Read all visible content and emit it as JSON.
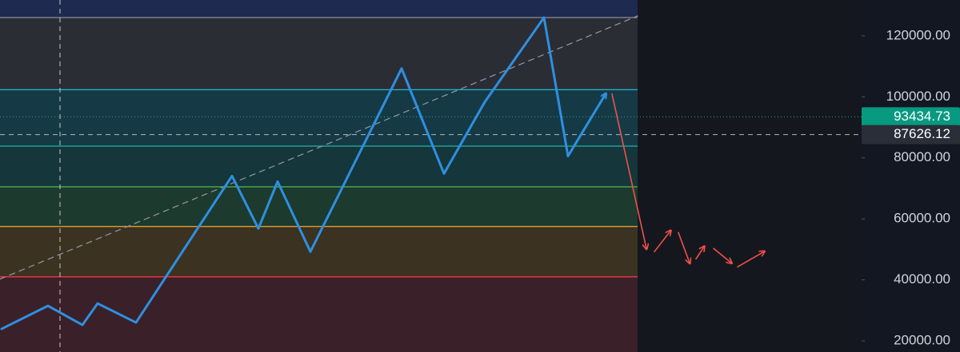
{
  "chart_data": {
    "type": "line",
    "xlim": [
      0,
      1080
    ],
    "ylim": [
      16350,
      131750
    ],
    "yticks": [
      {
        "value": 120000,
        "label": "120000.00"
      },
      {
        "value": 100000,
        "label": "100000.00"
      },
      {
        "value": 80000,
        "label": "80000.00"
      },
      {
        "value": 60000,
        "label": "60000.00"
      },
      {
        "value": 40000,
        "label": "40000.00"
      },
      {
        "value": 20000,
        "label": "20000.00"
      }
    ],
    "levels": [
      {
        "value": 126000,
        "color": "#8a8d99",
        "fill": "#2b2d35"
      },
      {
        "value": 102350,
        "color": "#22b8cf",
        "fill": "#153a45"
      },
      {
        "value": 83850,
        "color": "#26a69a",
        "fill": "#15363a"
      },
      {
        "value": 70500,
        "color": "#4caf50",
        "fill": "#1d3a2e"
      },
      {
        "value": 57500,
        "color": "#f0a830",
        "fill": "#3b3222"
      },
      {
        "value": 41000,
        "color": "#f23645",
        "fill": "#3a2029"
      }
    ],
    "series": [
      {
        "color": "#9598a1",
        "dash": true,
        "width": 1.2,
        "x": [
          0,
          797
        ],
        "values": [
          40250,
          126530
        ]
      },
      {
        "color": "#2f8fe0",
        "width": 3,
        "arrow": true,
        "x": [
          2,
          60,
          103,
          122,
          170,
          290,
          323,
          347,
          388,
          502,
          555,
          606,
          680,
          710,
          757
        ],
        "values": [
          23920,
          31490,
          25220,
          32270,
          26010,
          74050,
          56820,
          72220,
          49240,
          109300,
          74830,
          98330,
          126000,
          80570,
          100940
        ]
      },
      {
        "color": "#f0504a",
        "width": 1.6,
        "arrow": true,
        "x": [
          765,
          808,
          null,
          818,
          838,
          null,
          848,
          862,
          null,
          870,
          880,
          null,
          892,
          914,
          null,
          922,
          955
        ],
        "values": [
          100940,
          50290,
          null,
          49240,
          56030,
          null,
          55510,
          45590,
          null,
          46900,
          50820,
          null,
          50290,
          45590,
          null,
          44280,
          49240
        ]
      }
    ],
    "price_labels": [
      {
        "value": 93434.73,
        "color": "#089981",
        "line": "#26a69a"
      },
      {
        "value": 87626.12,
        "color": "#2a2e39",
        "line": "#b2b5be"
      }
    ]
  }
}
